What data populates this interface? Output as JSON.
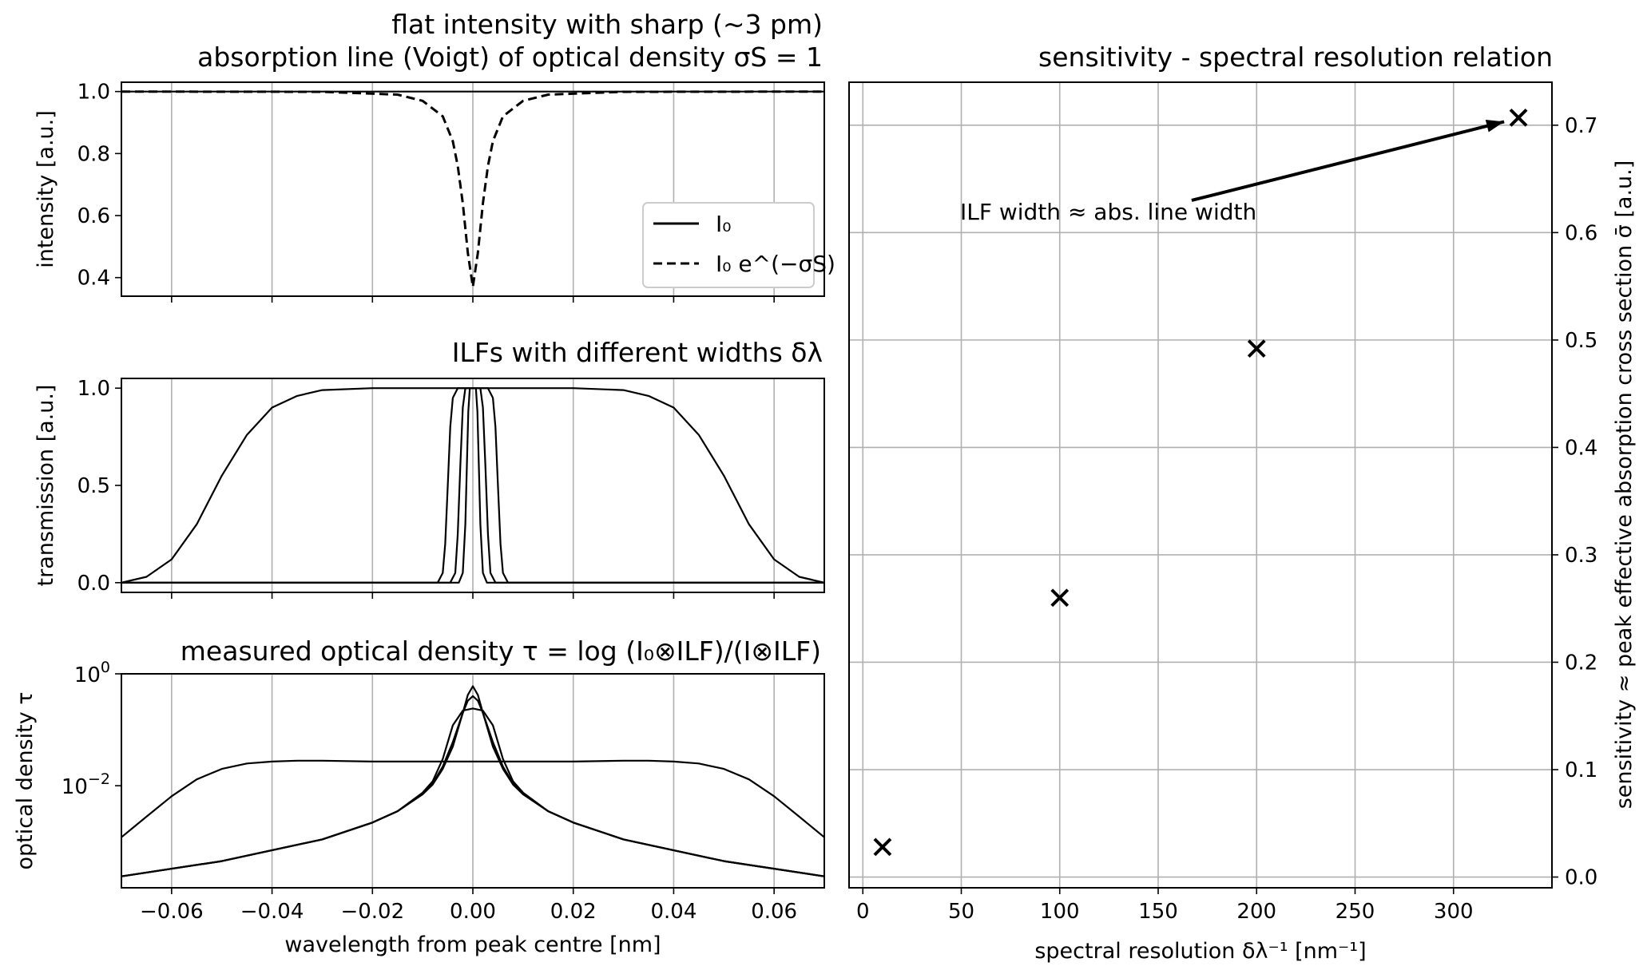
{
  "figure": {
    "panels": {
      "intensity": {
        "title_line1": "flat intensity with sharp (~3 pm)",
        "title_line2": "absorption line (Voigt) of optical density σS = 1",
        "ylabel": "intensity [a.u.]",
        "legend": [
          "I₀",
          "I₀ e^(−σS)"
        ]
      },
      "ilf": {
        "title": "ILFs with different widths δλ",
        "ylabel": "transmission [a.u.]"
      },
      "od": {
        "title": "measured optical density τ = log (I₀⊗ILF)/(I⊗ILF)",
        "ylabel": "optical density τ",
        "xlabel": "wavelength from peak centre [nm]"
      },
      "sensitivity": {
        "title": "sensitivity - spectral resolution relation",
        "xlabel": "spectral resolution δλ⁻¹ [nm⁻¹]",
        "ylabel": "sensitivity ≈ peak effective absorption cross section σ̄ [a.u.]",
        "annotation": "ILF width ≈ abs. line width"
      }
    }
  },
  "chart_data": [
    {
      "type": "line",
      "title": "flat intensity with sharp (~3 pm) absorption line (Voigt) of optical density σS = 1",
      "xlabel": "",
      "ylabel": "intensity [a.u.]",
      "xlim": [
        -0.07,
        0.07
      ],
      "ylim": [
        0.34,
        1.03
      ],
      "xticks": [
        -0.06,
        -0.04,
        -0.02,
        0.0,
        0.02,
        0.04,
        0.06
      ],
      "yticks": [
        0.4,
        0.6,
        0.8,
        1.0
      ],
      "ytick_labels": [
        "0.4",
        "0.6",
        "0.8",
        "1.0"
      ],
      "grid": "x",
      "legend": "center-right",
      "series": [
        {
          "name": "I₀",
          "style": "solid",
          "x": [
            -0.07,
            0.07
          ],
          "y": [
            1.0,
            1.0
          ]
        },
        {
          "name": "I₀ e^(−σS)",
          "style": "dashed",
          "x": [
            -0.07,
            -0.03,
            -0.015,
            -0.01,
            -0.006,
            -0.004,
            -0.003,
            -0.002,
            -0.001,
            0.0,
            0.001,
            0.002,
            0.003,
            0.004,
            0.006,
            0.01,
            0.015,
            0.03,
            0.07
          ],
          "y": [
            1.0,
            0.999,
            0.99,
            0.97,
            0.92,
            0.84,
            0.76,
            0.64,
            0.48,
            0.37,
            0.48,
            0.64,
            0.76,
            0.84,
            0.92,
            0.97,
            0.99,
            0.999,
            1.0
          ]
        }
      ]
    },
    {
      "type": "line",
      "title": "ILFs with different widths δλ",
      "xlabel": "",
      "ylabel": "transmission [a.u.]",
      "xlim": [
        -0.07,
        0.07
      ],
      "ylim": [
        -0.05,
        1.05
      ],
      "xticks": [
        -0.06,
        -0.04,
        -0.02,
        0.0,
        0.02,
        0.04,
        0.06
      ],
      "yticks": [
        0.0,
        0.5,
        1.0
      ],
      "ytick_labels": [
        "0.0",
        "0.5",
        "1.0"
      ],
      "grid": "x",
      "series": [
        {
          "x": [
            -0.07,
            -0.065,
            -0.06,
            -0.055,
            -0.05,
            -0.045,
            -0.04,
            -0.035,
            -0.03,
            -0.02,
            0.0,
            0.02,
            0.03,
            0.035,
            0.04,
            0.045,
            0.05,
            0.055,
            0.06,
            0.065,
            0.07
          ],
          "y": [
            0.0,
            0.03,
            0.12,
            0.3,
            0.55,
            0.76,
            0.9,
            0.96,
            0.99,
            1.0,
            1.0,
            1.0,
            0.99,
            0.96,
            0.9,
            0.76,
            0.55,
            0.3,
            0.12,
            0.03,
            0.0
          ]
        },
        {
          "x": [
            -0.07,
            -0.007,
            -0.006,
            -0.0055,
            -0.005,
            -0.0045,
            -0.004,
            -0.003,
            0.003,
            0.004,
            0.0045,
            0.005,
            0.0055,
            0.006,
            0.007,
            0.07
          ],
          "y": [
            0.0,
            0.0,
            0.05,
            0.2,
            0.5,
            0.8,
            0.95,
            1.0,
            1.0,
            0.95,
            0.8,
            0.5,
            0.2,
            0.05,
            0.0,
            0.0
          ]
        },
        {
          "x": [
            -0.07,
            -0.0045,
            -0.0035,
            -0.003,
            -0.0025,
            -0.002,
            -0.0015,
            0.0015,
            0.002,
            0.0025,
            0.003,
            0.0035,
            0.0045,
            0.07
          ],
          "y": [
            0.0,
            0.0,
            0.05,
            0.25,
            0.6,
            0.9,
            1.0,
            1.0,
            0.9,
            0.6,
            0.25,
            0.05,
            0.0,
            0.0
          ]
        },
        {
          "x": [
            -0.07,
            -0.0028,
            -0.002,
            -0.0015,
            -0.0012,
            -0.0009,
            -0.0006,
            0.0006,
            0.0009,
            0.0012,
            0.0015,
            0.002,
            0.0028,
            0.07
          ],
          "y": [
            0.0,
            0.0,
            0.05,
            0.3,
            0.6,
            0.88,
            1.0,
            1.0,
            0.88,
            0.6,
            0.3,
            0.05,
            0.0,
            0.0
          ]
        }
      ]
    },
    {
      "type": "line",
      "title": "measured optical density τ = log (I₀⊗ILF)/(I⊗ILF)",
      "xlabel": "wavelength from peak centre [nm]",
      "ylabel": "optical density τ",
      "xlim": [
        -0.07,
        0.07
      ],
      "ylim": [
        0.00015,
        1.0
      ],
      "yscale": "log",
      "xticks": [
        -0.06,
        -0.04,
        -0.02,
        0.0,
        0.02,
        0.04,
        0.06
      ],
      "xtick_labels": [
        "−0.06",
        "−0.04",
        "−0.02",
        "0.00",
        "0.02",
        "0.04",
        "0.06"
      ],
      "yticks": [
        0.01,
        1.0
      ],
      "ytick_labels_base": [
        "10",
        "10"
      ],
      "ytick_labels_exp": [
        "−2",
        "0"
      ],
      "grid": "x",
      "series": [
        {
          "x": [
            -0.07,
            -0.065,
            -0.06,
            -0.055,
            -0.05,
            -0.045,
            -0.04,
            -0.035,
            -0.03,
            -0.02,
            -0.01,
            0.0,
            0.01,
            0.02,
            0.03,
            0.035,
            0.04,
            0.045,
            0.05,
            0.055,
            0.06,
            0.065,
            0.07
          ],
          "y": [
            0.0012,
            0.0028,
            0.0065,
            0.013,
            0.02,
            0.025,
            0.027,
            0.028,
            0.028,
            0.027,
            0.027,
            0.027,
            0.027,
            0.027,
            0.028,
            0.028,
            0.027,
            0.025,
            0.02,
            0.013,
            0.0065,
            0.0028,
            0.0012
          ]
        },
        {
          "x": [
            -0.07,
            -0.05,
            -0.03,
            -0.02,
            -0.015,
            -0.01,
            -0.008,
            -0.006,
            -0.004,
            -0.002,
            0.0,
            0.002,
            0.004,
            0.006,
            0.008,
            0.01,
            0.015,
            0.02,
            0.03,
            0.05,
            0.07
          ],
          "y": [
            0.00024,
            0.00045,
            0.0011,
            0.0022,
            0.0035,
            0.0075,
            0.012,
            0.03,
            0.12,
            0.22,
            0.24,
            0.22,
            0.12,
            0.03,
            0.012,
            0.0075,
            0.0035,
            0.0022,
            0.0011,
            0.00045,
            0.00024
          ]
        },
        {
          "x": [
            -0.07,
            -0.05,
            -0.03,
            -0.02,
            -0.015,
            -0.01,
            -0.008,
            -0.006,
            -0.004,
            -0.002,
            -0.001,
            0.0,
            0.001,
            0.002,
            0.004,
            0.006,
            0.008,
            0.01,
            0.015,
            0.02,
            0.03,
            0.05,
            0.07
          ],
          "y": [
            0.00024,
            0.00045,
            0.0011,
            0.0022,
            0.0035,
            0.0072,
            0.011,
            0.022,
            0.06,
            0.2,
            0.33,
            0.4,
            0.33,
            0.2,
            0.06,
            0.022,
            0.011,
            0.0072,
            0.0035,
            0.0022,
            0.0011,
            0.00045,
            0.00024
          ]
        },
        {
          "x": [
            -0.07,
            -0.05,
            -0.03,
            -0.02,
            -0.015,
            -0.01,
            -0.008,
            -0.006,
            -0.004,
            -0.002,
            -0.001,
            0.0,
            0.001,
            0.002,
            0.004,
            0.006,
            0.008,
            0.01,
            0.015,
            0.02,
            0.03,
            0.05,
            0.07
          ],
          "y": [
            0.00024,
            0.00045,
            0.0011,
            0.0022,
            0.0035,
            0.007,
            0.0105,
            0.02,
            0.05,
            0.2,
            0.42,
            0.6,
            0.42,
            0.2,
            0.05,
            0.02,
            0.0105,
            0.007,
            0.0035,
            0.0022,
            0.0011,
            0.00045,
            0.00024
          ]
        }
      ]
    },
    {
      "type": "scatter",
      "title": "sensitivity - spectral resolution relation",
      "xlabel": "spectral resolution δλ⁻¹ [nm⁻¹]",
      "ylabel": "sensitivity ≈ peak effective absorption cross section σ̄ [a.u.]",
      "xlim": [
        -7,
        350
      ],
      "ylim": [
        -0.01,
        0.74
      ],
      "xticks": [
        0,
        50,
        100,
        150,
        200,
        250,
        300
      ],
      "yticks": [
        0.0,
        0.1,
        0.2,
        0.3,
        0.4,
        0.5,
        0.6,
        0.7
      ],
      "ytick_labels": [
        "0.0",
        "0.1",
        "0.2",
        "0.3",
        "0.4",
        "0.5",
        "0.6",
        "0.7"
      ],
      "yaxis_side": "right",
      "grid": "both",
      "marker": "x",
      "x": [
        10,
        100,
        200,
        333
      ],
      "y": [
        0.028,
        0.26,
        0.492,
        0.707
      ],
      "annotation": {
        "text": "ILF width ≈ abs. line width",
        "xy": [
          333,
          0.707
        ],
        "xytext": [
          167,
          0.63
        ]
      }
    }
  ]
}
